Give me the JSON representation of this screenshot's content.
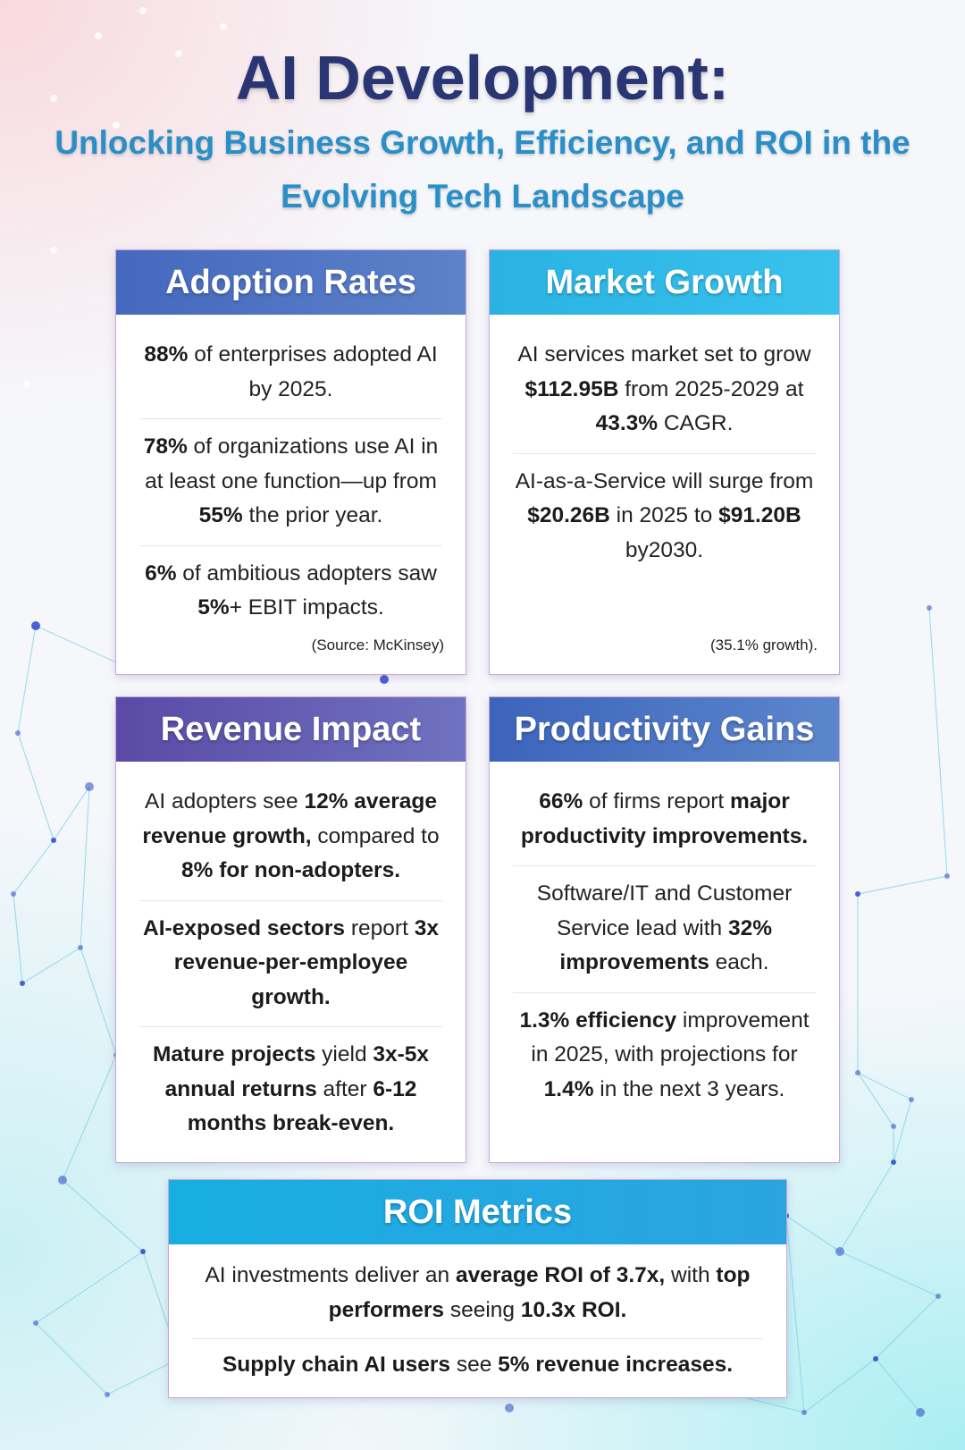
{
  "header": {
    "title": "AI Development:",
    "subtitle": "Unlocking Business Growth, Efficiency, and ROI in the Evolving Tech Landscape"
  },
  "cards": {
    "adoption": {
      "heading": "Adoption Rates",
      "stats": [
        [
          {
            "t": "88%",
            "b": true
          },
          {
            "t": " of enterprises adopted AI by 2025."
          }
        ],
        [
          {
            "t": "78%",
            "b": true
          },
          {
            "t": " of organizations use AI in at least one function—up from "
          },
          {
            "t": "55%",
            "b": true
          },
          {
            "t": " the prior year."
          }
        ],
        [
          {
            "t": "6%",
            "b": true
          },
          {
            "t": " of ambitious adopters saw "
          },
          {
            "t": "5%",
            "b": true
          },
          {
            "t": "+ EBIT impacts."
          }
        ]
      ],
      "source": "(Source: McKinsey)"
    },
    "market": {
      "heading": "Market Growth",
      "stats": [
        [
          {
            "t": "AI services market set to grow "
          },
          {
            "t": "$112.95B",
            "b": true
          },
          {
            "t": " from 2025-2029 at "
          },
          {
            "t": "43.3%",
            "b": true
          },
          {
            "t": " CAGR."
          }
        ],
        [
          {
            "t": "AI-as-a-Service will surge from "
          },
          {
            "t": "$20.26B",
            "b": true
          },
          {
            "t": " in 2025 to "
          },
          {
            "t": "$91.20B",
            "b": true
          },
          {
            "t": " by2030."
          }
        ]
      ],
      "source": "(35.1% growth)."
    },
    "revenue": {
      "heading": "Revenue Impact",
      "stats": [
        [
          {
            "t": "AI adopters see "
          },
          {
            "t": "12% average revenue growth,",
            "b": true
          },
          {
            "t": " compared to "
          },
          {
            "t": "8% for non-adopters.",
            "b": true
          }
        ],
        [
          {
            "t": "AI-exposed sectors",
            "b": true
          },
          {
            "t": " report "
          },
          {
            "t": "3x revenue-per-employee growth.",
            "b": true
          }
        ],
        [
          {
            "t": "Mature projects",
            "b": true
          },
          {
            "t": " yield "
          },
          {
            "t": "3x-5x annual returns",
            "b": true
          },
          {
            "t": " after "
          },
          {
            "t": "6-12 months break-even.",
            "b": true
          }
        ]
      ]
    },
    "productivity": {
      "heading": "Productivity Gains",
      "stats": [
        [
          {
            "t": "66%",
            "b": true
          },
          {
            "t": " of firms report "
          },
          {
            "t": "major productivity improvements.",
            "b": true
          }
        ],
        [
          {
            "t": "Software/IT and Customer Service lead with "
          },
          {
            "t": "32% improvements",
            "b": true
          },
          {
            "t": " each."
          }
        ],
        [
          {
            "t": "1.3% efficiency",
            "b": true
          },
          {
            "t": " improvement in 2025, with projections for "
          },
          {
            "t": "1.4%",
            "b": true
          },
          {
            "t": " in the next 3 years."
          }
        ]
      ]
    },
    "roi": {
      "heading": "ROI Metrics",
      "stats": [
        [
          {
            "t": "AI investments deliver an "
          },
          {
            "t": "average ROI of 3.7x,",
            "b": true
          },
          {
            "t": " with "
          },
          {
            "t": "top performers",
            "b": true
          },
          {
            "t": " seeing "
          },
          {
            "t": "10.3x ROI.",
            "b": true
          }
        ],
        [
          {
            "t": "Supply chain AI users",
            "b": true
          },
          {
            "t": " see "
          },
          {
            "t": "5% revenue increases.",
            "b": true
          }
        ]
      ]
    }
  },
  "colors": {
    "title": "#2a3573",
    "subtitle": "#2a8fc7",
    "network_node": "#2f47c9",
    "network_line": "#7fd3e6"
  }
}
